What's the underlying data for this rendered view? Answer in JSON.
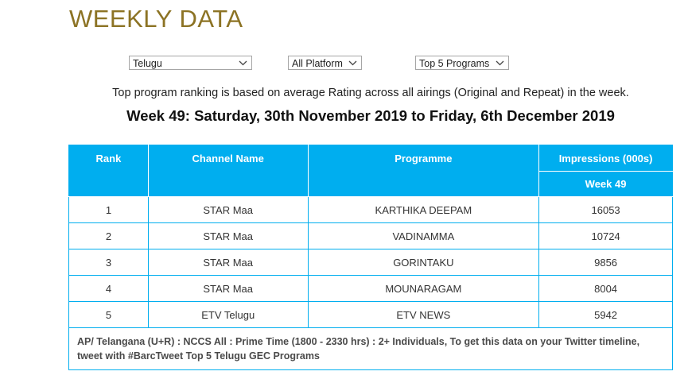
{
  "page": {
    "title": "WEEKLY DATA"
  },
  "filters": {
    "language": "Telugu",
    "platform": "All Platform",
    "top_n": "Top 5 Programs"
  },
  "note": "Top program ranking is based on average Rating across all airings (Original and Repeat) in the week.",
  "week_heading": "Week 49: Saturday, 30th November 2019 to Friday, 6th December 2019",
  "table": {
    "headers": {
      "rank": "Rank",
      "channel": "Channel Name",
      "programme": "Programme",
      "impressions": "Impressions (000s)",
      "week": "Week 49"
    },
    "rows": [
      {
        "rank": "1",
        "channel": "STAR Maa",
        "programme": "KARTHIKA DEEPAM",
        "impressions": "16053"
      },
      {
        "rank": "2",
        "channel": "STAR Maa",
        "programme": "VADINAMMA",
        "impressions": "10724"
      },
      {
        "rank": "3",
        "channel": "STAR Maa",
        "programme": "GORINTAKU",
        "impressions": "9856"
      },
      {
        "rank": "4",
        "channel": "STAR Maa",
        "programme": "MOUNARAGAM",
        "impressions": "8004"
      },
      {
        "rank": "5",
        "channel": "ETV Telugu",
        "programme": "ETV NEWS",
        "impressions": "5942"
      }
    ],
    "footer": "AP/ Telangana (U+R) : NCCS All : Prime Time (1800 - 2330 hrs) : 2+ Individuals, To get this data on your Twitter timeline, tweet with #BarcTweet Top 5 Telugu GEC Programs"
  },
  "icons": {
    "dropdown": "chevron-down-icon"
  },
  "colors": {
    "title": "#8c7324",
    "header_bg": "#00aeef",
    "header_text": "#ffffff",
    "border": "#00aeef"
  }
}
